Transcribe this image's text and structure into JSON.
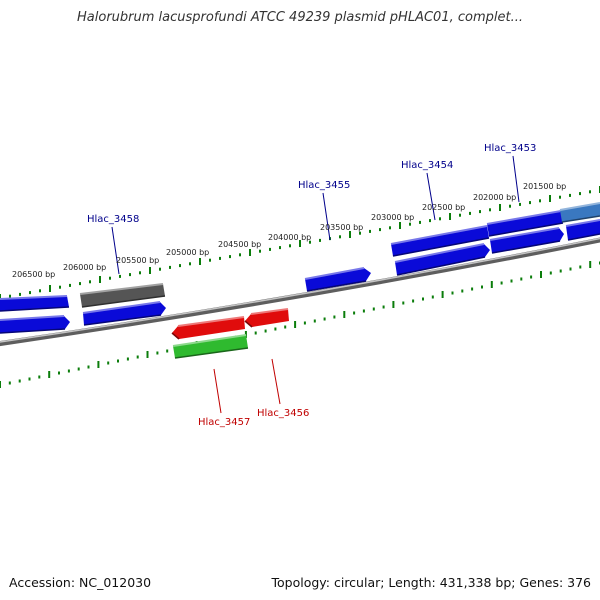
{
  "title": "Halorubrum lacusprofundi ATCC 49239 plasmid pHLAC01, complet...",
  "footer": {
    "accession": "Accession: NC_012030",
    "topology": "Topology: circular; Length: 431,338 bp; Genes: 376"
  },
  "colors": {
    "forward_cds": "#0a0ad8",
    "reverse_cds": "#e00c0c",
    "rna": "#2fba2f",
    "pseudo": "#555555",
    "highlight": "#3a78c0",
    "tick": "#0b7d0b",
    "backbone": "#8a8a8a",
    "label_forward": "#00008b",
    "label_reverse": "#c00000"
  },
  "scale_labels": [
    "206500 bp",
    "206000 bp",
    "205500 bp",
    "205000 bp",
    "204500 bp",
    "204000 bp",
    "203500 bp",
    "203000 bp",
    "202500 bp",
    "202000 bp",
    "201500 bp"
  ],
  "gene_labels": [
    {
      "name": "Hlac_3458",
      "strand": "forward"
    },
    {
      "name": "Hlac_3455",
      "strand": "forward"
    },
    {
      "name": "Hlac_3454",
      "strand": "forward"
    },
    {
      "name": "Hlac_3453",
      "strand": "forward"
    },
    {
      "name": "Hlac_3457",
      "strand": "reverse"
    },
    {
      "name": "Hlac_3456",
      "strand": "reverse"
    }
  ]
}
